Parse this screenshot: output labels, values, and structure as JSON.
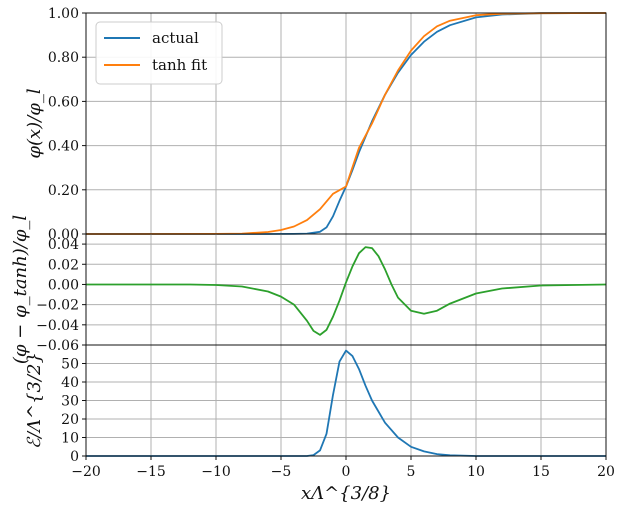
{
  "chart_data": [
    {
      "type": "line",
      "panel": "top",
      "ylabel": "φ(x)/φ_l",
      "xlim": [
        -20,
        20
      ],
      "ylim": [
        0,
        1
      ],
      "yticks": [
        0,
        0.2,
        0.4,
        0.6,
        0.8,
        1.0
      ],
      "ytick_labels": [
        "0.00",
        "0.20",
        "0.40",
        "0.60",
        "0.80",
        "1.00"
      ],
      "grid": true,
      "legend_position": "top-left",
      "series": [
        {
          "name": "actual",
          "color": "#1f77b4",
          "x": [
            -20,
            -6,
            -4,
            -3,
            -2,
            -1.5,
            -1,
            -0.5,
            0,
            0.5,
            1,
            1.5,
            2,
            3,
            4,
            5,
            6,
            7,
            8,
            10,
            12,
            15,
            20
          ],
          "y": [
            0,
            0,
            0.0005,
            0.002,
            0.01,
            0.03,
            0.08,
            0.15,
            0.215,
            0.29,
            0.37,
            0.44,
            0.51,
            0.63,
            0.73,
            0.81,
            0.87,
            0.915,
            0.945,
            0.98,
            0.993,
            0.999,
            1.0
          ]
        },
        {
          "name": "tanh fit",
          "color": "#ff7f0e",
          "x": [
            -20,
            -10,
            -8,
            -6,
            -5,
            -4,
            -3,
            -2,
            -1,
            0,
            1,
            2,
            3,
            4,
            5,
            6,
            7,
            8,
            10,
            12,
            15,
            20
          ],
          "y": [
            0,
            0.0005,
            0.002,
            0.009,
            0.018,
            0.034,
            0.063,
            0.112,
            0.182,
            0.215,
            0.39,
            0.5,
            0.63,
            0.74,
            0.83,
            0.895,
            0.94,
            0.965,
            0.99,
            0.997,
            0.999,
            1.0
          ]
        }
      ]
    },
    {
      "type": "line",
      "panel": "middle",
      "ylabel": "(φ − φ_tanh)/φ_l",
      "xlim": [
        -20,
        20
      ],
      "ylim": [
        -0.06,
        0.05
      ],
      "yticks": [
        -0.06,
        -0.04,
        -0.02,
        0.0,
        0.02,
        0.04
      ],
      "ytick_labels": [
        "−0.06",
        "−0.04",
        "−0.02",
        "0.00",
        "0.02",
        "0.04"
      ],
      "grid": true,
      "series": [
        {
          "color": "#2ca02c",
          "x": [
            -20,
            -12,
            -10,
            -8,
            -6,
            -5,
            -4,
            -3,
            -2.5,
            -2,
            -1.5,
            -1,
            -0.5,
            0,
            0.5,
            1,
            1.5,
            2,
            2.5,
            3,
            3.5,
            4,
            5,
            6,
            7,
            8,
            10,
            12,
            15,
            20
          ],
          "y": [
            0,
            0,
            -0.0005,
            -0.002,
            -0.007,
            -0.012,
            -0.02,
            -0.036,
            -0.046,
            -0.05,
            -0.045,
            -0.032,
            -0.016,
            0.002,
            0.018,
            0.031,
            0.037,
            0.036,
            0.028,
            0.015,
            0.0,
            -0.013,
            -0.026,
            -0.029,
            -0.026,
            -0.019,
            -0.009,
            -0.004,
            -0.001,
            0.0
          ]
        }
      ]
    },
    {
      "type": "line",
      "panel": "bottom",
      "ylabel": "ℰ/Λ^{3/2}",
      "xlabel": "xΛ^{3/8}",
      "xlim": [
        -20,
        20
      ],
      "ylim": [
        0,
        60
      ],
      "xticks": [
        -20,
        -15,
        -10,
        -5,
        0,
        5,
        10,
        15,
        20
      ],
      "xtick_labels": [
        "−20",
        "−15",
        "−10",
        "−5",
        "0",
        "5",
        "10",
        "15",
        "20"
      ],
      "yticks": [
        0,
        10,
        20,
        30,
        40,
        50
      ],
      "ytick_labels": [
        "0",
        "10",
        "20",
        "30",
        "40",
        "50"
      ],
      "grid": true,
      "series": [
        {
          "color": "#1f77b4",
          "x": [
            -20,
            -3,
            -2.5,
            -2,
            -1.5,
            -1,
            -0.5,
            0,
            0.5,
            1,
            1.5,
            2,
            3,
            4,
            5,
            6,
            7,
            8,
            10,
            20
          ],
          "y": [
            0,
            0,
            0.5,
            3,
            12,
            33,
            51,
            57,
            54,
            47,
            38,
            30,
            18,
            10,
            5,
            2.5,
            1,
            0.4,
            0,
            0
          ]
        }
      ]
    }
  ],
  "legend": {
    "items": [
      {
        "label": "actual",
        "color": "#1f77b4"
      },
      {
        "label": "tanh fit",
        "color": "#ff7f0e"
      }
    ]
  }
}
